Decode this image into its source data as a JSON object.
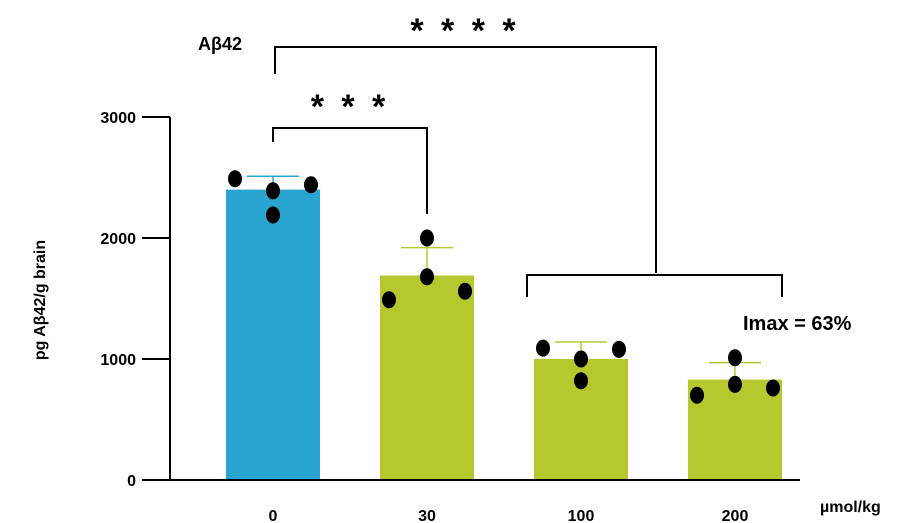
{
  "chart_data": {
    "type": "bar",
    "title": "Aβ42",
    "ylabel": "pg Aβ42/g brain",
    "xunit": "µmol/kg",
    "categories": [
      "0",
      "30",
      "100",
      "200"
    ],
    "values": [
      2400,
      1690,
      1000,
      830
    ],
    "errors": [
      110,
      230,
      140,
      140
    ],
    "points": [
      [
        2490,
        2390,
        2440,
        2190
      ],
      [
        2000,
        1680,
        1490,
        1560
      ],
      [
        1090,
        1000,
        820,
        1080
      ],
      [
        1010,
        790,
        700,
        760
      ]
    ],
    "bar_colors": [
      "#2aa5d2",
      "#b5c92f",
      "#b5c92f",
      "#b5c92f"
    ],
    "ylim": [
      0,
      3000
    ],
    "yticks": [
      "0",
      "1000",
      "2000",
      "3000"
    ],
    "significance": [
      {
        "label": "* * *",
        "from": "0",
        "to": "30"
      },
      {
        "label": "* * * *",
        "from": "0",
        "to": "100-200"
      }
    ],
    "annotation": "Imax = 63%",
    "grid": false
  }
}
